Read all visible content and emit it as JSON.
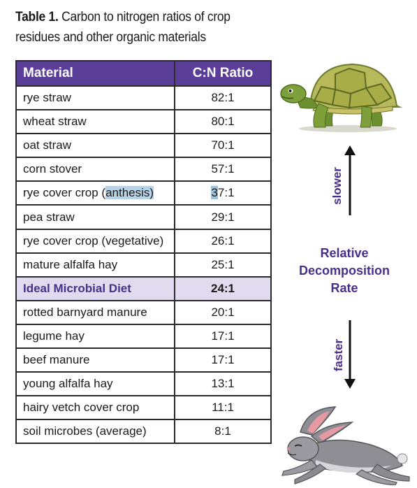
{
  "caption": {
    "label": "Table 1.",
    "text": " Carbon to nitrogen ratios of crop residues and other organic materials"
  },
  "table": {
    "headers": {
      "material": "Material",
      "ratio": "C:N Ratio"
    },
    "rows": [
      {
        "material": "rye straw",
        "ratio": "82:1"
      },
      {
        "material": "wheat straw",
        "ratio": "80:1"
      },
      {
        "material": "oat straw",
        "ratio": "70:1"
      },
      {
        "material": "corn stover",
        "ratio": "57:1"
      },
      {
        "material_prefix": "rye cover crop (",
        "material_highlight": "anthesis)",
        "ratio_highlight": "3",
        "ratio_rest": "7:1"
      },
      {
        "material": "pea straw",
        "ratio": "29:1"
      },
      {
        "material": "rye cover crop (vegetative)",
        "ratio": "26:1"
      },
      {
        "material": "mature alfalfa hay",
        "ratio": "25:1"
      },
      {
        "material": "Ideal Microbial Diet",
        "ratio": "24:1"
      },
      {
        "material": "rotted barnyard manure",
        "ratio": "20:1"
      },
      {
        "material": "legume hay",
        "ratio": "17:1"
      },
      {
        "material": "beef manure",
        "ratio": "17:1"
      },
      {
        "material": "young alfalfa hay",
        "ratio": "13:1"
      },
      {
        "material": "hairy vetch cover crop",
        "ratio": "11:1"
      },
      {
        "material": "soil microbes (average)",
        "ratio": "8:1"
      }
    ]
  },
  "sidebar": {
    "slower": "slower",
    "faster": "faster",
    "relative_line1": "Relative",
    "relative_line2": "Decomposition",
    "relative_line3": "Rate"
  },
  "colors": {
    "header_purple": "#5b3e98",
    "ideal_row_bg": "#e0dbee",
    "label_purple": "#4a2f8a",
    "selection_highlight": "#b7d3e6"
  },
  "icons": [
    "tortoise-illustration",
    "rabbit-illustration",
    "arrow-up-icon",
    "arrow-down-icon"
  ]
}
